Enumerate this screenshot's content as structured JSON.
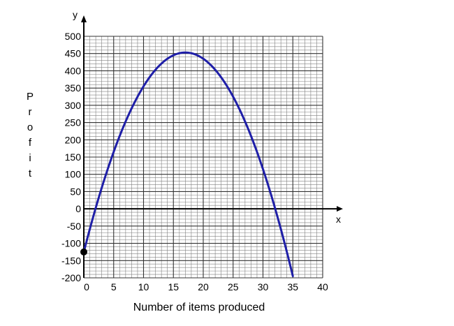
{
  "chart_data": {
    "type": "line",
    "title": "",
    "xlabel": "Number of items produced",
    "ylabel": "Profit",
    "x_axis_letter": "x",
    "y_axis_letter": "y",
    "xlim": [
      0,
      40
    ],
    "ylim": [
      -200,
      500
    ],
    "x_ticks": [
      0,
      5,
      10,
      15,
      20,
      25,
      30,
      35,
      40
    ],
    "y_ticks": [
      500,
      450,
      400,
      350,
      300,
      250,
      200,
      150,
      100,
      50,
      0,
      -50,
      -100,
      -150,
      -200
    ],
    "grid": true,
    "minor_grid_x_step": 1,
    "minor_grid_y_step": 10,
    "series": [
      {
        "color": "#1f1fa8",
        "function": "quadratic",
        "coefficients": {
          "a": -2,
          "b": 68,
          "c": -125
        },
        "x_range": [
          0,
          35
        ],
        "vertex": [
          17,
          453
        ],
        "x_intercepts": [
          1.9,
          32.1
        ]
      }
    ],
    "points": [
      {
        "x": 0,
        "y": -125,
        "color": "#000000"
      }
    ]
  },
  "colors": {
    "axis": "#000000",
    "grid": "#808080",
    "curve": "#1f1fa8"
  }
}
